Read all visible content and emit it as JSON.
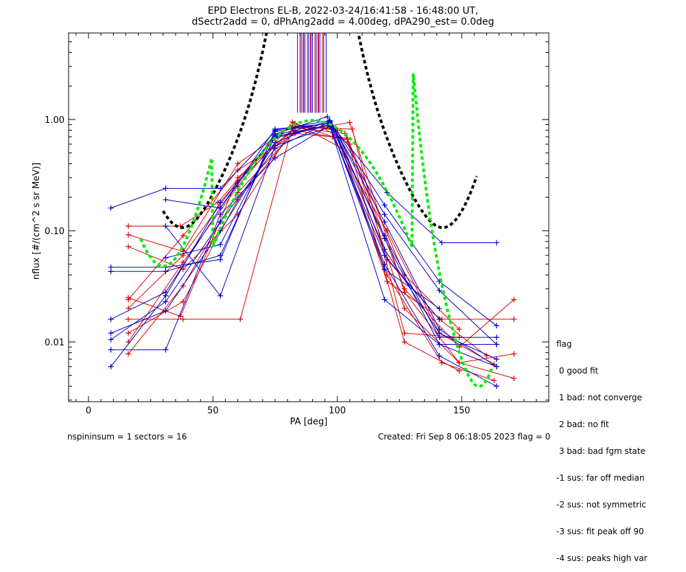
{
  "title_line1": "EPD Electrons EL-B, 2022-03-24/16:41:58 - 16:48:00 UT,",
  "title_line2": "dSectr2add = 0, dPhAng2add = 4.00deg, dPA290_est=   0.0deg",
  "footer_left": "nspininsum =  1  sectors = 16",
  "footer_right": "Created: Fri Sep  8 06:18:05 2023   flag = 0",
  "legend": {
    "title": "flag",
    "items": [
      " 0 good fit",
      " 1 bad: not converge",
      " 2 bad: no fit",
      " 3 bad: bad fgm state",
      "-1 sus: far off median",
      "-2 sus: not symmetric",
      "-3 sus: fit peak off 90",
      "-4 sus: peaks high var"
    ]
  },
  "chart_data": {
    "type": "line",
    "xlabel": "PA [deg]",
    "ylabel": "nflux [#/(cm^2 s sr MeV)]",
    "xlim": [
      -8,
      185
    ],
    "ylim": [
      0.0029,
      6
    ],
    "yscale": "log",
    "xticks": [
      0,
      50,
      100,
      150
    ],
    "yticks": [
      0.01,
      0.1,
      1.0
    ],
    "ytick_labels": [
      "0.01",
      "0.10",
      "1.00"
    ],
    "colors": {
      "red": "#dd0000",
      "blue": "#0000cc",
      "fit_black": "#000000",
      "fit_green": "#00ee00"
    },
    "spin_sectors": [
      {
        "color": "red",
        "points": [
          [
            16,
            0.11
          ],
          [
            37,
            0.11
          ],
          [
            52,
            0.18
          ],
          [
            75,
            0.7
          ],
          [
            94,
            0.85
          ],
          [
            105,
            0.6
          ],
          [
            127,
            0.02
          ],
          [
            149,
            0.0065
          ],
          [
            171,
            0.0047
          ]
        ]
      },
      {
        "color": "red",
        "points": [
          [
            16,
            0.092
          ],
          [
            38,
            0.065
          ],
          [
            60,
            0.4
          ],
          [
            83,
            0.92
          ],
          [
            98,
            0.7
          ],
          [
            120,
            0.1
          ],
          [
            141,
            0.012
          ],
          [
            163,
            0.0063
          ]
        ]
      },
      {
        "color": "red",
        "points": [
          [
            16,
            0.072
          ],
          [
            38,
            0.045
          ],
          [
            60,
            0.14
          ],
          [
            83,
            0.9
          ],
          [
            100,
            0.8
          ],
          [
            120,
            0.055
          ],
          [
            141,
            0.016
          ],
          [
            160,
            0.0075
          ]
        ]
      },
      {
        "color": "red",
        "points": [
          [
            16,
            0.025
          ],
          [
            37,
            0.017
          ],
          [
            60,
            0.3
          ],
          [
            83,
            0.85
          ],
          [
            106,
            0.82
          ],
          [
            127,
            0.012
          ],
          [
            149,
            0.011
          ]
        ]
      },
      {
        "color": "red",
        "points": [
          [
            16,
            0.0078
          ],
          [
            38,
            0.032
          ],
          [
            60,
            0.22
          ],
          [
            83,
            0.78
          ],
          [
            105,
            0.94
          ],
          [
            127,
            0.028
          ],
          [
            149,
            0.0065
          ],
          [
            171,
            0.0078
          ]
        ]
      },
      {
        "color": "red",
        "points": [
          [
            16,
            0.016
          ],
          [
            38,
            0.016
          ],
          [
            61,
            0.016
          ],
          [
            82,
            0.88
          ],
          [
            99,
            0.82
          ],
          [
            120,
            0.04
          ],
          [
            142,
            0.0065
          ],
          [
            163,
            0.0045
          ]
        ]
      },
      {
        "color": "red",
        "points": [
          [
            16,
            0.012
          ],
          [
            38,
            0.023
          ],
          [
            60,
            0.19
          ],
          [
            83,
            0.8
          ],
          [
            104,
            0.66
          ],
          [
            127,
            0.01
          ],
          [
            149,
            0.0055
          ]
        ]
      },
      {
        "color": "red",
        "points": [
          [
            16,
            0.01
          ],
          [
            38,
            0.052
          ],
          [
            60,
            0.25
          ],
          [
            82,
            0.95
          ],
          [
            102,
            0.55
          ],
          [
            120,
            0.035
          ],
          [
            142,
            0.016
          ],
          [
            171,
            0.016
          ]
        ]
      },
      {
        "color": "red",
        "points": [
          [
            16,
            0.02
          ],
          [
            38,
            0.06
          ],
          [
            60,
            0.28
          ],
          [
            83,
            0.84
          ],
          [
            103,
            0.75
          ],
          [
            127,
            0.03
          ],
          [
            149,
            0.009
          ],
          [
            171,
            0.024
          ]
        ]
      },
      {
        "color": "red",
        "points": [
          [
            16,
            0.024
          ],
          [
            38,
            0.09
          ],
          [
            60,
            0.35
          ],
          [
            83,
            0.75
          ],
          [
            104,
            0.68
          ],
          [
            127,
            0.04
          ],
          [
            149,
            0.013
          ]
        ]
      },
      {
        "color": "blue",
        "points": [
          [
            9,
            0.16
          ],
          [
            31,
            0.24
          ],
          [
            53,
            0.24
          ],
          [
            75,
            0.78
          ],
          [
            97,
            0.93
          ],
          [
            120,
            0.22
          ],
          [
            142,
            0.078
          ],
          [
            164,
            0.078
          ]
        ]
      },
      {
        "color": "blue",
        "points": [
          [
            9,
            0.047
          ],
          [
            31,
            0.047
          ],
          [
            53,
            0.055
          ],
          [
            75,
            0.8
          ],
          [
            97,
            0.98
          ],
          [
            119,
            0.17
          ],
          [
            141,
            0.035
          ],
          [
            164,
            0.014
          ]
        ]
      },
      {
        "color": "blue",
        "points": [
          [
            9,
            0.043
          ],
          [
            31,
            0.043
          ],
          [
            53,
            0.06
          ],
          [
            75,
            0.72
          ],
          [
            97,
            0.96
          ],
          [
            119,
            0.14
          ],
          [
            141,
            0.029
          ],
          [
            164,
            0.0095
          ]
        ]
      },
      {
        "color": "blue",
        "points": [
          [
            9,
            0.016
          ],
          [
            31,
            0.028
          ],
          [
            53,
            0.16
          ],
          [
            75,
            0.74
          ],
          [
            96,
            1.06
          ],
          [
            119,
            0.12
          ],
          [
            141,
            0.013
          ],
          [
            164,
            0.006
          ]
        ]
      },
      {
        "color": "blue",
        "points": [
          [
            9,
            0.012
          ],
          [
            31,
            0.019
          ],
          [
            53,
            0.1
          ],
          [
            75,
            0.62
          ],
          [
            97,
            0.98
          ],
          [
            119,
            0.085
          ],
          [
            141,
            0.0095
          ],
          [
            164,
            0.006
          ]
        ]
      },
      {
        "color": "blue",
        "points": [
          [
            9,
            0.0105
          ],
          [
            31,
            0.023
          ],
          [
            53,
            0.12
          ],
          [
            75,
            0.55
          ],
          [
            97,
            0.95
          ],
          [
            119,
            0.068
          ],
          [
            141,
            0.012
          ],
          [
            164,
            0.007
          ]
        ]
      },
      {
        "color": "blue",
        "points": [
          [
            9,
            0.0085
          ],
          [
            31,
            0.0085
          ],
          [
            53,
            0.14
          ],
          [
            75,
            0.45
          ],
          [
            97,
            0.88
          ],
          [
            119,
            0.024
          ],
          [
            141,
            0.0095
          ],
          [
            164,
            0.0095
          ]
        ]
      },
      {
        "color": "blue",
        "points": [
          [
            9,
            0.006
          ],
          [
            31,
            0.026
          ],
          [
            53,
            0.18
          ],
          [
            75,
            0.68
          ],
          [
            97,
            0.9
          ],
          [
            119,
            0.05
          ],
          [
            141,
            0.0075
          ],
          [
            164,
            0.004
          ]
        ]
      },
      {
        "color": "blue",
        "points": [
          [
            31,
            0.19
          ],
          [
            53,
            0.16
          ],
          [
            75,
            0.82
          ],
          [
            97,
            0.92
          ],
          [
            119,
            0.09
          ],
          [
            141,
            0.011
          ],
          [
            164,
            0.011
          ]
        ]
      },
      {
        "color": "blue",
        "points": [
          [
            31,
            0.11
          ],
          [
            53,
            0.026
          ],
          [
            75,
            0.58
          ],
          [
            97,
            0.86
          ],
          [
            119,
            0.06
          ],
          [
            141,
            0.016
          ]
        ]
      },
      {
        "color": "blue",
        "points": [
          [
            31,
            0.057
          ],
          [
            53,
            0.075
          ],
          [
            75,
            0.7
          ],
          [
            97,
            0.9
          ],
          [
            119,
            0.045
          ],
          [
            141,
            0.02
          ]
        ]
      }
    ],
    "fit_black": {
      "style": "dashed",
      "x_range": [
        30,
        156
      ],
      "center": 90,
      "peak": 0.95,
      "sigma_deg": 18.5,
      "baseline": 0.085,
      "baseline_center": 41,
      "baseline_width": 5.0
    },
    "fit_green": {
      "style": "dashed",
      "x_range": [
        21,
        162
      ],
      "center": 90,
      "peak": 0.98,
      "sigma_deg": 17.5
    },
    "peak_marker_lines": [
      {
        "color": "red",
        "x": [
          85,
          86.5,
          88,
          89.5,
          91,
          92.5,
          94
        ]
      },
      {
        "color": "blue",
        "x": [
          84,
          85.5,
          87,
          88.5,
          90,
          91.5,
          93,
          94.5,
          95.5
        ]
      },
      {
        "color": "purple",
        "x": [
          86.2,
          89.2,
          92.2
        ]
      }
    ]
  }
}
